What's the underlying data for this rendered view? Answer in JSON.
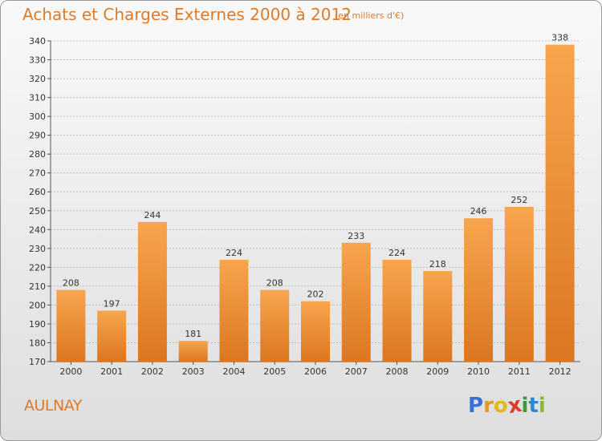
{
  "header": {
    "title": "Achats et Charges Externes 2000 à 2012",
    "subtitle": "(en milliers d'€)"
  },
  "footer": {
    "city": "AULNAY",
    "logo_letters": [
      "P",
      "r",
      "o",
      "x",
      "i",
      "t",
      "i"
    ],
    "logo_colors": [
      "#3a6fd8",
      "#e39a22",
      "#e0b818",
      "#e03a2e",
      "#3a9a3a",
      "#2f86d6",
      "#8ab82e"
    ]
  },
  "colors": {
    "bar_light": "#f7a54e",
    "bar_dark": "#dc7620",
    "accent": "#e07a26",
    "grid": "#bdbdbd",
    "axis": "#555555"
  },
  "chart_data": {
    "type": "bar",
    "title": "Achats et Charges Externes 2000 à 2012",
    "subtitle": "(en milliers d'€)",
    "categories": [
      "2000",
      "2001",
      "2002",
      "2003",
      "2004",
      "2005",
      "2006",
      "2007",
      "2008",
      "2009",
      "2010",
      "2011",
      "2012"
    ],
    "values": [
      208,
      197,
      244,
      181,
      224,
      208,
      202,
      233,
      224,
      218,
      246,
      252,
      338
    ],
    "ylim": [
      170,
      340
    ],
    "ytick_step": 10,
    "grid": true,
    "xlabel": "",
    "ylabel": ""
  }
}
